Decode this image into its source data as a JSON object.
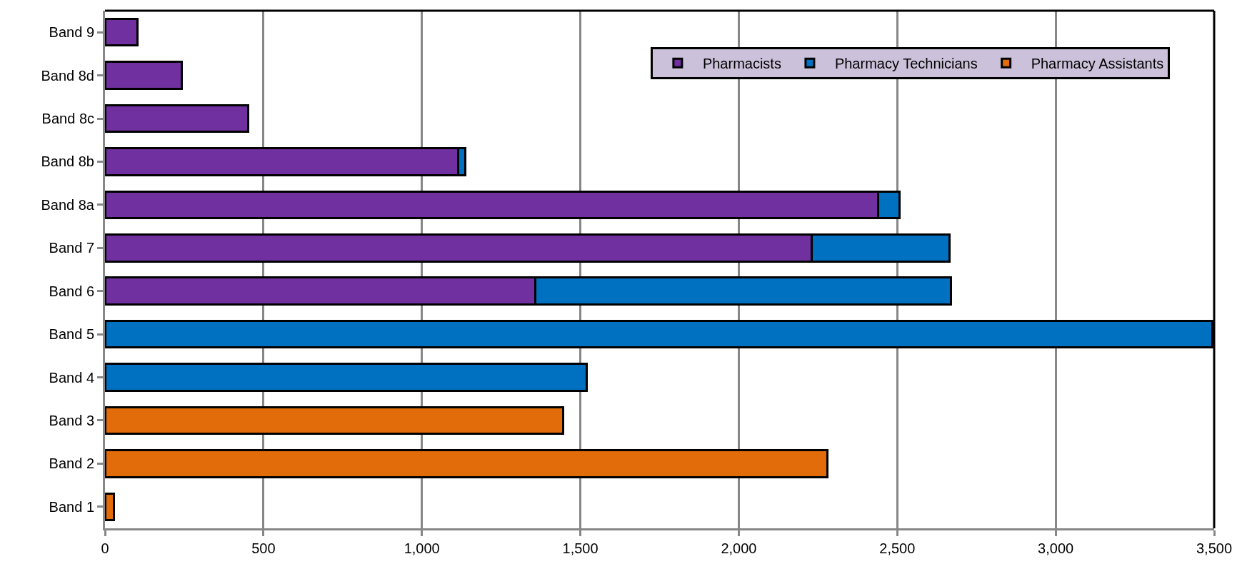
{
  "chart_data": {
    "type": "bar",
    "orientation": "horizontal",
    "stacked": true,
    "categories": [
      "Band 9",
      "Band 8d",
      "Band 8c",
      "Band 8b",
      "Band 8a",
      "Band 7",
      "Band 6",
      "Band 5",
      "Band 4",
      "Band 3",
      "Band 2",
      "Band 1"
    ],
    "series": [
      {
        "name": "Pharmacists",
        "color": "#7030a0",
        "values": [
          103,
          243,
          452,
          1114,
          2440,
          2229,
          1358,
          null,
          null,
          null,
          null,
          null
        ]
      },
      {
        "name": "Pharmacy Technicians",
        "color": "#0070c0",
        "values": [
          null,
          null,
          null,
          24,
          67,
          437,
          1312,
          3495,
          1520,
          null,
          null,
          null
        ]
      },
      {
        "name": "Pharmacy Assistants",
        "color": "#e36c0a",
        "values": [
          null,
          null,
          null,
          null,
          null,
          null,
          null,
          null,
          null,
          1445,
          2279,
          28
        ]
      }
    ],
    "xlim": [
      0,
      3500
    ],
    "xticks": [
      0,
      {
        "value": 500,
        "label": "500"
      },
      {
        "value": 1000,
        "label": "1,000"
      },
      {
        "value": 1500,
        "label": "1,500"
      },
      {
        "value": 2000,
        "label": "2,000"
      },
      {
        "value": 2500,
        "label": "2,500"
      },
      {
        "value": 3000,
        "label": "3,000"
      },
      {
        "value": 3500,
        "label": "3,500"
      }
    ],
    "grid": "x",
    "legend": "top right"
  }
}
